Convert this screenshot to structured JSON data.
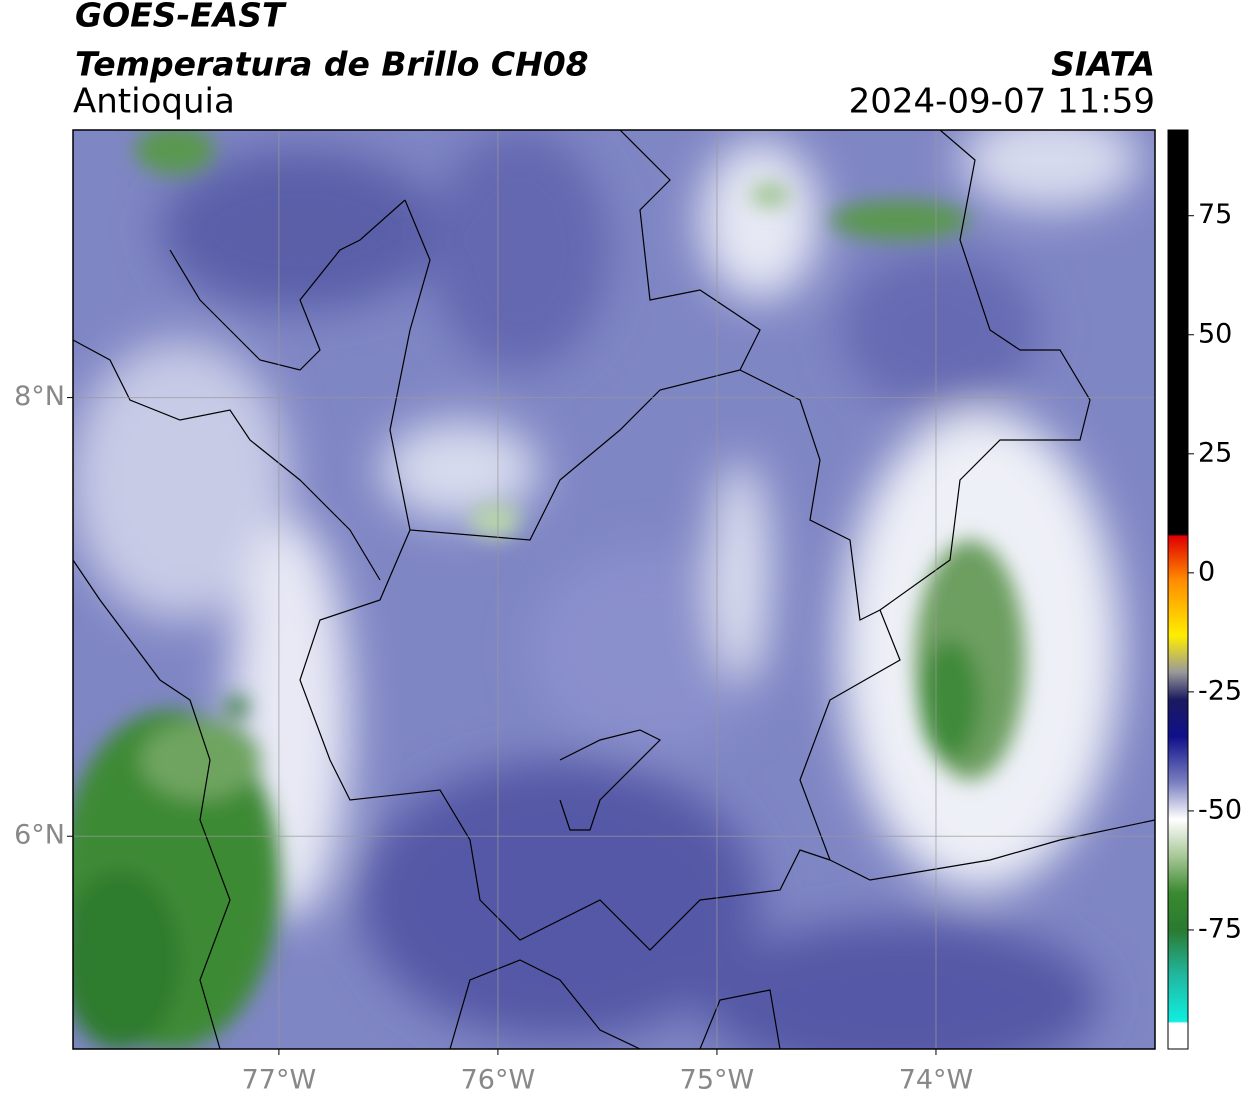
{
  "header": {
    "title": "GOES-EAST",
    "subtitle": "Temperatura de Brillo CH08",
    "region": "Antioquia",
    "source": "SIATA",
    "datetime": "2024-09-07 11:59"
  },
  "map": {
    "xlim": [
      -77.94,
      -73.0
    ],
    "ylim": [
      5.03,
      9.22
    ],
    "xticks": [
      {
        "value": -77,
        "label": "77°W"
      },
      {
        "value": -76,
        "label": "76°W"
      },
      {
        "value": -75,
        "label": "75°W"
      },
      {
        "value": -74,
        "label": "74°W"
      }
    ],
    "yticks": [
      {
        "value": 8,
        "label": "8°N"
      },
      {
        "value": 6,
        "label": "6°N"
      }
    ]
  },
  "colorbar": {
    "lim": [
      -100,
      93
    ],
    "ticks": [
      75,
      50,
      25,
      0,
      -25,
      -50,
      -75
    ]
  }
}
